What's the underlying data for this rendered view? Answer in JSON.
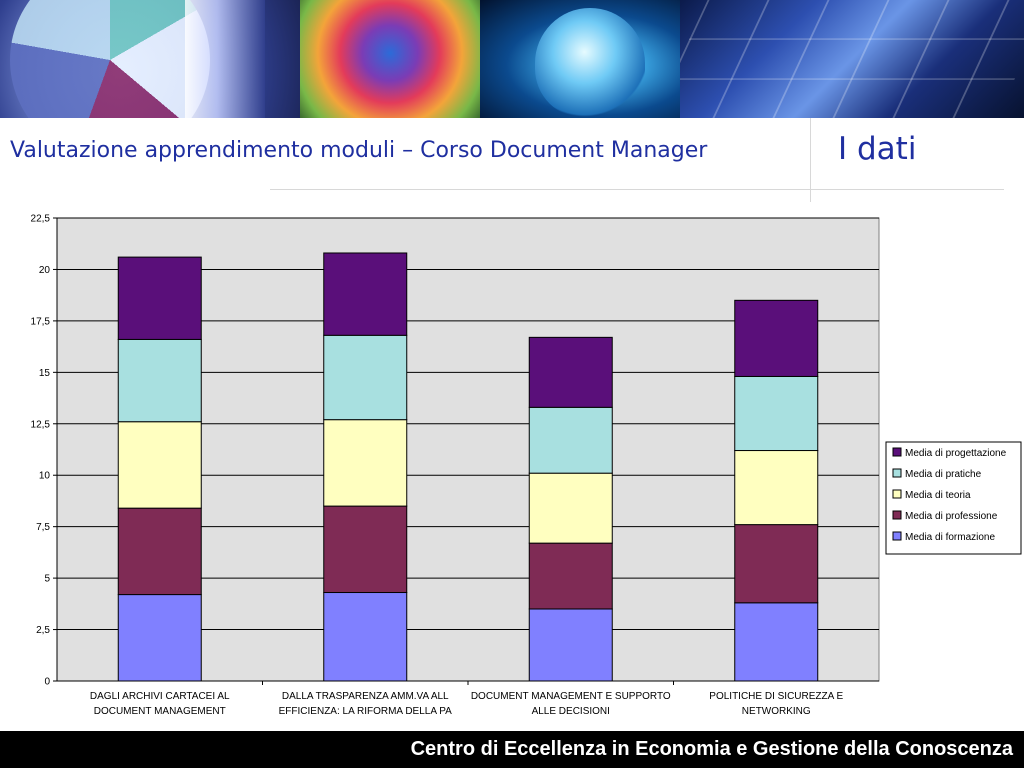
{
  "header": {
    "title": "Valutazione apprendimento moduli – Corso Document Manager",
    "section_label": "I dati"
  },
  "footer": {
    "text": "Centro di Eccellenza in Economia e Gestione della Conoscenza"
  },
  "chart_data": {
    "type": "bar",
    "stacked": true,
    "categories": [
      [
        "DAGLI ARCHIVI CARTACEI AL",
        "DOCUMENT MANAGEMENT"
      ],
      [
        "DALLA TRASPARENZA AMM.VA ALL",
        "EFFICIENZA: LA RIFORMA DELLA PA"
      ],
      [
        "DOCUMENT MANAGEMENT E SUPPORTO",
        "ALLE DECISIONI"
      ],
      [
        "POLITICHE DI SICUREZZA E",
        "NETWORKING"
      ]
    ],
    "series": [
      {
        "name": "Media di formazione",
        "color": "#8080ff",
        "values": [
          4.2,
          4.3,
          3.5,
          3.8
        ]
      },
      {
        "name": "Media di professione",
        "color": "#7f2b55",
        "values": [
          4.2,
          4.2,
          3.2,
          3.8
        ]
      },
      {
        "name": "Media di teoria",
        "color": "#ffffc0",
        "values": [
          4.2,
          4.2,
          3.4,
          3.6
        ]
      },
      {
        "name": "Media di pratiche",
        "color": "#a8e0e0",
        "values": [
          4.0,
          4.1,
          3.2,
          3.6
        ]
      },
      {
        "name": "Media di progettazione",
        "color": "#5a0f7a",
        "values": [
          4.0,
          4.0,
          3.4,
          3.7
        ]
      }
    ],
    "legend_order": [
      4,
      3,
      2,
      1,
      0
    ],
    "legend_position": "right",
    "yticks": [
      "0",
      "2,5",
      "5",
      "7,5",
      "10",
      "12,5",
      "15",
      "17,5",
      "20",
      "22,5"
    ],
    "ylim": [
      0,
      22.5
    ],
    "ystep": 2.5,
    "grid": true,
    "plot_background": "#e0e0e0",
    "xlabel": "",
    "ylabel": ""
  }
}
